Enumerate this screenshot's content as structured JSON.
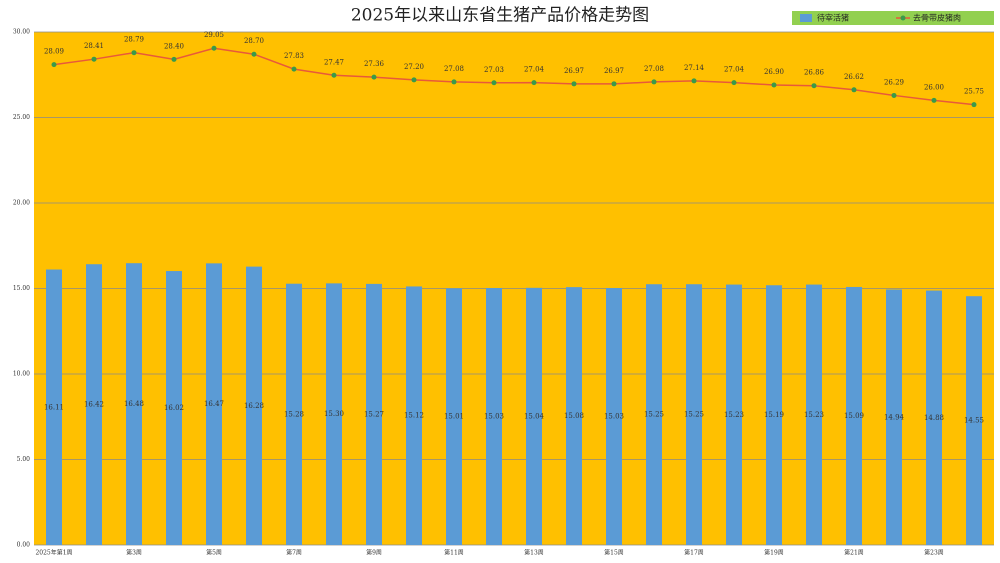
{
  "chart_data": {
    "type": "bar_line",
    "title": "2025年以来山东省生猪产品价格走势图",
    "categories": [
      "2025年第1周",
      null,
      "第3周",
      null,
      "第5周",
      null,
      "第7周",
      null,
      "第9周",
      null,
      "第11周",
      null,
      "第13周",
      null,
      "第15周",
      null,
      "第17周",
      null,
      "第19周",
      null,
      "第21周",
      null,
      "第23周",
      null
    ],
    "series": [
      {
        "name": "待宰活猪",
        "type": "bar",
        "color": "#5b9bd5",
        "values": [
          16.11,
          16.42,
          16.48,
          16.02,
          16.47,
          16.28,
          15.28,
          15.3,
          15.27,
          15.12,
          15.01,
          15.03,
          15.04,
          15.08,
          15.03,
          15.25,
          15.25,
          15.23,
          15.19,
          15.23,
          15.09,
          14.94,
          14.88,
          14.55
        ],
        "value_labels": [
          "16.11",
          "16.42",
          "16.48",
          "16.02",
          "16.47",
          "16.28",
          "15.28",
          "15.30",
          "15.27",
          "15.12",
          "15.01",
          "15.03",
          "15.04",
          "15.08",
          "15.03",
          "15.25",
          "15.25",
          "15.23",
          "15.19",
          "15.23",
          "15.09",
          "14.94",
          "14.88",
          "14.55"
        ]
      },
      {
        "name": "去骨带皮猪肉",
        "type": "line",
        "color": "#e8593a",
        "marker_color": "#3a9a4a",
        "values": [
          28.09,
          28.41,
          28.79,
          28.4,
          29.05,
          28.7,
          27.83,
          27.47,
          27.36,
          27.2,
          27.08,
          27.03,
          27.04,
          26.97,
          26.97,
          27.08,
          27.14,
          27.04,
          26.9,
          26.86,
          26.62,
          26.29,
          26.0,
          25.75
        ],
        "value_labels": [
          "28.09",
          "28.41",
          "28.79",
          "28.40",
          "29.05",
          "28.70",
          "27.83",
          "27.47",
          "27.36",
          "27.20",
          "27.08",
          "27.03",
          "27.04",
          "26.97",
          "26.97",
          "27.08",
          "27.14",
          "27.04",
          "26.90",
          "26.86",
          "26.62",
          "26.29",
          "26.00",
          "25.75"
        ]
      }
    ],
    "ylim": [
      0,
      30
    ],
    "yticks": [
      {
        "value": 0,
        "label": "0.00"
      },
      {
        "value": 5,
        "label": "5.00"
      },
      {
        "value": 10,
        "label": "10.00"
      },
      {
        "value": 15,
        "label": "15.00"
      },
      {
        "value": 20,
        "label": "20.00"
      },
      {
        "value": 25,
        "label": "25.00"
      },
      {
        "value": 30,
        "label": "30.00"
      }
    ],
    "grid": true,
    "plot_background": "#ffc000",
    "legend": "top-right"
  }
}
